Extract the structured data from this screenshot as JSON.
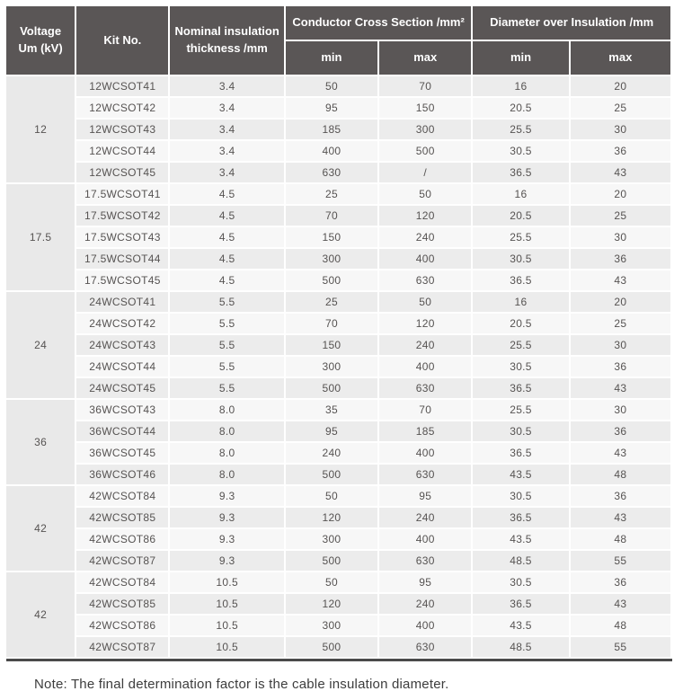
{
  "table": {
    "header": {
      "voltage": "Voltage\nUm (kV)",
      "kit_no": "Kit No.",
      "thickness": "Nominal insulation\nthickness /mm",
      "conductor_group": "Conductor Cross Section /mm²",
      "diameter_group": "Diameter over Insulation /mm",
      "min": "min",
      "max": "max"
    },
    "colors": {
      "header_bg": "#5a5656",
      "row_dark": "#ececec",
      "row_light": "#f7f7f7",
      "voltage_cell_bg": "#e9e9e9",
      "bottom_rule": "#4a4a4a"
    },
    "groups": [
      {
        "voltage": "12",
        "rows": [
          {
            "kit": "12WCSOT41",
            "thickness": "3.4",
            "ccs_min": "50",
            "ccs_max": "70",
            "dia_min": "16",
            "dia_max": "20"
          },
          {
            "kit": "12WCSOT42",
            "thickness": "3.4",
            "ccs_min": "95",
            "ccs_max": "150",
            "dia_min": "20.5",
            "dia_max": "25"
          },
          {
            "kit": "12WCSOT43",
            "thickness": "3.4",
            "ccs_min": "185",
            "ccs_max": "300",
            "dia_min": "25.5",
            "dia_max": "30"
          },
          {
            "kit": "12WCSOT44",
            "thickness": "3.4",
            "ccs_min": "400",
            "ccs_max": "500",
            "dia_min": "30.5",
            "dia_max": "36"
          },
          {
            "kit": "12WCSOT45",
            "thickness": "3.4",
            "ccs_min": "630",
            "ccs_max": "/",
            "dia_min": "36.5",
            "dia_max": "43"
          }
        ]
      },
      {
        "voltage": "17.5",
        "rows": [
          {
            "kit": "17.5WCSOT41",
            "thickness": "4.5",
            "ccs_min": "25",
            "ccs_max": "50",
            "dia_min": "16",
            "dia_max": "20"
          },
          {
            "kit": "17.5WCSOT42",
            "thickness": "4.5",
            "ccs_min": "70",
            "ccs_max": "120",
            "dia_min": "20.5",
            "dia_max": "25"
          },
          {
            "kit": "17.5WCSOT43",
            "thickness": "4.5",
            "ccs_min": "150",
            "ccs_max": "240",
            "dia_min": "25.5",
            "dia_max": "30"
          },
          {
            "kit": "17.5WCSOT44",
            "thickness": "4.5",
            "ccs_min": "300",
            "ccs_max": "400",
            "dia_min": "30.5",
            "dia_max": "36"
          },
          {
            "kit": "17.5WCSOT45",
            "thickness": "4.5",
            "ccs_min": "500",
            "ccs_max": "630",
            "dia_min": "36.5",
            "dia_max": "43"
          }
        ]
      },
      {
        "voltage": "24",
        "rows": [
          {
            "kit": "24WCSOT41",
            "thickness": "5.5",
            "ccs_min": "25",
            "ccs_max": "50",
            "dia_min": "16",
            "dia_max": "20"
          },
          {
            "kit": "24WCSOT42",
            "thickness": "5.5",
            "ccs_min": "70",
            "ccs_max": "120",
            "dia_min": "20.5",
            "dia_max": "25"
          },
          {
            "kit": "24WCSOT43",
            "thickness": "5.5",
            "ccs_min": "150",
            "ccs_max": "240",
            "dia_min": "25.5",
            "dia_max": "30"
          },
          {
            "kit": "24WCSOT44",
            "thickness": "5.5",
            "ccs_min": "300",
            "ccs_max": "400",
            "dia_min": "30.5",
            "dia_max": "36"
          },
          {
            "kit": "24WCSOT45",
            "thickness": "5.5",
            "ccs_min": "500",
            "ccs_max": "630",
            "dia_min": "36.5",
            "dia_max": "43"
          }
        ]
      },
      {
        "voltage": "36",
        "rows": [
          {
            "kit": "36WCSOT43",
            "thickness": "8.0",
            "ccs_min": "35",
            "ccs_max": "70",
            "dia_min": "25.5",
            "dia_max": "30"
          },
          {
            "kit": "36WCSOT44",
            "thickness": "8.0",
            "ccs_min": "95",
            "ccs_max": "185",
            "dia_min": "30.5",
            "dia_max": "36"
          },
          {
            "kit": "36WCSOT45",
            "thickness": "8.0",
            "ccs_min": "240",
            "ccs_max": "400",
            "dia_min": "36.5",
            "dia_max": "43"
          },
          {
            "kit": "36WCSOT46",
            "thickness": "8.0",
            "ccs_min": "500",
            "ccs_max": "630",
            "dia_min": "43.5",
            "dia_max": "48"
          }
        ]
      },
      {
        "voltage": "42",
        "rows": [
          {
            "kit": "42WCSOT84",
            "thickness": "9.3",
            "ccs_min": "50",
            "ccs_max": "95",
            "dia_min": "30.5",
            "dia_max": "36"
          },
          {
            "kit": "42WCSOT85",
            "thickness": "9.3",
            "ccs_min": "120",
            "ccs_max": "240",
            "dia_min": "36.5",
            "dia_max": "43"
          },
          {
            "kit": "42WCSOT86",
            "thickness": "9.3",
            "ccs_min": "300",
            "ccs_max": "400",
            "dia_min": "43.5",
            "dia_max": "48"
          },
          {
            "kit": "42WCSOT87",
            "thickness": "9.3",
            "ccs_min": "500",
            "ccs_max": "630",
            "dia_min": "48.5",
            "dia_max": "55"
          }
        ]
      },
      {
        "voltage": "42",
        "rows": [
          {
            "kit": "42WCSOT84",
            "thickness": "10.5",
            "ccs_min": "50",
            "ccs_max": "95",
            "dia_min": "30.5",
            "dia_max": "36"
          },
          {
            "kit": "42WCSOT85",
            "thickness": "10.5",
            "ccs_min": "120",
            "ccs_max": "240",
            "dia_min": "36.5",
            "dia_max": "43"
          },
          {
            "kit": "42WCSOT86",
            "thickness": "10.5",
            "ccs_min": "300",
            "ccs_max": "400",
            "dia_min": "43.5",
            "dia_max": "48"
          },
          {
            "kit": "42WCSOT87",
            "thickness": "10.5",
            "ccs_min": "500",
            "ccs_max": "630",
            "dia_min": "48.5",
            "dia_max": "55"
          }
        ]
      }
    ]
  },
  "note": "Note: The final determination factor is the cable insulation diameter."
}
